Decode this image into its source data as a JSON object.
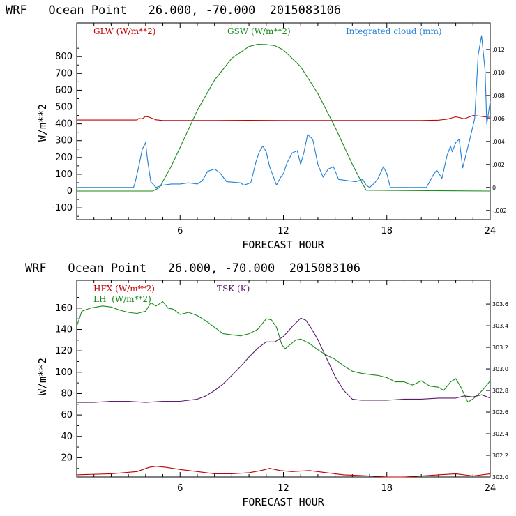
{
  "chart_data": [
    {
      "type": "line",
      "title": "WRF   Ocean Point   26.000, -70.000  2015083106",
      "xlabel": "FORECAST HOUR",
      "ylabel": "W/m**2",
      "xlim": [
        0,
        24
      ],
      "ylim": [
        -170,
        1000
      ],
      "xticks": [
        6,
        12,
        18,
        24
      ],
      "yticks": [
        -100,
        0,
        100,
        200,
        300,
        400,
        500,
        600,
        700,
        800
      ],
      "y2lim": [
        -0.0028,
        0.0143
      ],
      "y2ticks": [
        -0.002,
        0,
        0.002,
        0.004,
        0.006,
        0.008,
        0.01,
        0.012
      ],
      "y2ticklabels": [
        "-.002",
        "0",
        ".002",
        ".004",
        ".006",
        ".008",
        ".010",
        ".012"
      ],
      "legend": [
        "GLW (W/m**2)",
        "GSW (W/m**2)",
        "Integrated cloud (mm)"
      ],
      "colors": [
        "#c00000",
        "#1a8a1a",
        "#1e7fd8"
      ],
      "series": [
        {
          "name": "GLW (W/m**2)",
          "axis": "left",
          "x": [
            0,
            3.5,
            3.6,
            3.8,
            4.0,
            4.2,
            4.4,
            4.6,
            5.0,
            6,
            8,
            10,
            12,
            14,
            16,
            18,
            20,
            21.0,
            21.5,
            21.8,
            22.0,
            22.2,
            22.5,
            23.0,
            23.2,
            23.5,
            23.8,
            24
          ],
          "y": [
            423,
            423,
            432,
            430,
            445,
            440,
            432,
            424,
            420,
            420,
            420,
            421,
            420,
            420,
            420,
            420,
            420,
            422,
            428,
            436,
            442,
            438,
            430,
            450,
            448,
            445,
            440,
            440
          ]
        },
        {
          "name": "GSW (W/m**2)",
          "axis": "left",
          "x": [
            0,
            4.4,
            4.8,
            5.5,
            6,
            7,
            8,
            9,
            10,
            10.5,
            11,
            11.5,
            12,
            13,
            14,
            15,
            16,
            16.5,
            16.8,
            24
          ],
          "y": [
            0,
            0,
            20,
            150,
            260,
            480,
            660,
            790,
            860,
            873,
            872,
            865,
            840,
            740,
            580,
            380,
            160,
            60,
            5,
            0
          ]
        },
        {
          "name": "Integrated cloud (mm)",
          "axis": "right",
          "x": [
            0,
            3.3,
            3.4,
            3.6,
            3.8,
            4.0,
            4.1,
            4.3,
            4.6,
            5.0,
            5.5,
            6,
            6.5,
            7,
            7.3,
            7.6,
            8.0,
            8.3,
            8.7,
            9.5,
            9.7,
            10.1,
            10.4,
            10.6,
            10.8,
            11.0,
            11.2,
            11.6,
            11.8,
            12.0,
            12.2,
            12.5,
            12.8,
            13.0,
            13.2,
            13.4,
            13.7,
            14.0,
            14.3,
            14.6,
            14.9,
            15.2,
            15.7,
            16.2,
            16.6,
            16.8,
            17.0,
            17.3,
            17.5,
            17.8,
            18.0,
            18.2,
            20.3,
            20.7,
            20.9,
            21.2,
            21.5,
            21.7,
            21.8,
            22.0,
            22.2,
            22.4,
            22.8,
            23.1,
            23.3,
            23.5,
            23.7,
            23.8,
            24
          ],
          "y": [
            0,
            0,
            0.0005,
            0.0018,
            0.0033,
            0.0039,
            0.0025,
            0.0005,
            0,
            0.0002,
            0.0003,
            0.0003,
            0.0004,
            0.0003,
            0.0006,
            0.0014,
            0.0016,
            0.0013,
            0.0005,
            0.0004,
            0.0002,
            0.0004,
            0.0022,
            0.0031,
            0.0036,
            0.0031,
            0.0018,
            0.0002,
            0.0008,
            0.0012,
            0.0021,
            0.003,
            0.0032,
            0.002,
            0.0031,
            0.0046,
            0.0042,
            0.002,
            0.0009,
            0.0016,
            0.0018,
            0.0007,
            0.0006,
            0.0005,
            0.0007,
            0.0002,
            0,
            0.0004,
            0.0008,
            0.0018,
            0.0012,
            0,
            0,
            0.0011,
            0.0015,
            0.0008,
            0.0028,
            0.0036,
            0.0031,
            0.0039,
            0.0042,
            0.0017,
            0.0041,
            0.006,
            0.0115,
            0.0132,
            0.0102,
            0.0055,
            0.0075
          ]
        }
      ]
    },
    {
      "type": "line",
      "title": "WRF   Ocean Point   26.000, -70.000  2015083106",
      "xlabel": "FORECAST HOUR",
      "ylabel": "W/m**2",
      "xlim": [
        0,
        24
      ],
      "ylim": [
        2,
        186
      ],
      "xticks": [
        6,
        12,
        18,
        24
      ],
      "yticks": [
        20,
        40,
        60,
        80,
        100,
        120,
        140,
        160
      ],
      "y2lim": [
        302.0,
        303.82
      ],
      "y2ticks": [
        302.0,
        302.2,
        302.4,
        302.6,
        302.8,
        303.0,
        303.2,
        303.4,
        303.6
      ],
      "y2ticklabels": [
        "302.0",
        "302.2",
        "302.4",
        "302.6",
        "302.8",
        "303.0",
        "303.2",
        "303.4",
        "303.6"
      ],
      "legend": [
        "HFX (W/m**2)",
        "LH  (W/m**2)",
        "TSK (K)"
      ],
      "colors": [
        "#c00000",
        "#1a8a1a",
        "#5a1a6e"
      ],
      "series": [
        {
          "name": "HFX (W/m**2)",
          "axis": "left",
          "x": [
            0,
            2,
            3.5,
            4.2,
            4.6,
            5.2,
            6,
            7,
            8,
            9,
            10,
            10.7,
            11.2,
            11.8,
            12.5,
            13.5,
            14.5,
            15.5,
            17,
            18,
            19,
            20,
            21,
            22,
            23,
            24
          ],
          "y": [
            4,
            5,
            7,
            11,
            12,
            11,
            9,
            7,
            5,
            5,
            6,
            8,
            10,
            8,
            7,
            8,
            6,
            4,
            3,
            2,
            2,
            3,
            4,
            5,
            3,
            5
          ]
        },
        {
          "name": "LH  (W/m**2)",
          "axis": "left",
          "x": [
            0,
            0.3,
            0.8,
            1.5,
            2,
            2.5,
            3,
            3.5,
            4.0,
            4.3,
            4.6,
            5.0,
            5.3,
            5.6,
            6.0,
            6.5,
            7.0,
            7.5,
            8.0,
            8.5,
            9.0,
            9.5,
            10.0,
            10.5,
            11.0,
            11.3,
            11.6,
            11.9,
            12.1,
            12.4,
            12.7,
            13.0,
            13.5,
            14.0,
            14.5,
            15.0,
            15.5,
            16.0,
            16.5,
            17.0,
            17.5,
            18.0,
            18.5,
            19.0,
            19.5,
            20.0,
            20.5,
            21.0,
            21.3,
            21.7,
            22.0,
            22.3,
            22.7,
            23.0,
            23.3,
            23.6,
            24
          ],
          "y": [
            143,
            157,
            160,
            162,
            161,
            158,
            156,
            155,
            157,
            165,
            162,
            166,
            160,
            159,
            154,
            156,
            153,
            148,
            142,
            136,
            135,
            134,
            136,
            140,
            150,
            149,
            142,
            126,
            122,
            126,
            130,
            131,
            127,
            121,
            116,
            112,
            106,
            101,
            99,
            98,
            97,
            95,
            91,
            91,
            88,
            92,
            87,
            86,
            83,
            91,
            94,
            86,
            72,
            75,
            79,
            84,
            92
          ]
        },
        {
          "name": "TSK (K)",
          "axis": "right",
          "x": [
            0,
            1,
            2,
            3,
            4,
            5,
            6,
            6.5,
            7,
            7.5,
            8,
            8.5,
            9,
            9.5,
            10,
            10.5,
            11,
            11.5,
            12,
            12.5,
            13,
            13.3,
            13.6,
            14,
            14.5,
            15,
            15.5,
            16,
            16.5,
            17,
            18,
            19,
            20,
            21,
            22,
            22.5,
            23,
            23.5,
            24
          ],
          "y": [
            302.69,
            302.69,
            302.7,
            302.7,
            302.69,
            302.7,
            302.7,
            302.71,
            302.72,
            302.75,
            302.8,
            302.86,
            302.94,
            303.02,
            303.11,
            303.19,
            303.25,
            303.25,
            303.3,
            303.39,
            303.47,
            303.45,
            303.38,
            303.27,
            303.1,
            302.93,
            302.8,
            302.72,
            302.71,
            302.71,
            302.71,
            302.72,
            302.72,
            302.73,
            302.73,
            302.75,
            302.74,
            302.76,
            302.73
          ]
        }
      ]
    }
  ]
}
